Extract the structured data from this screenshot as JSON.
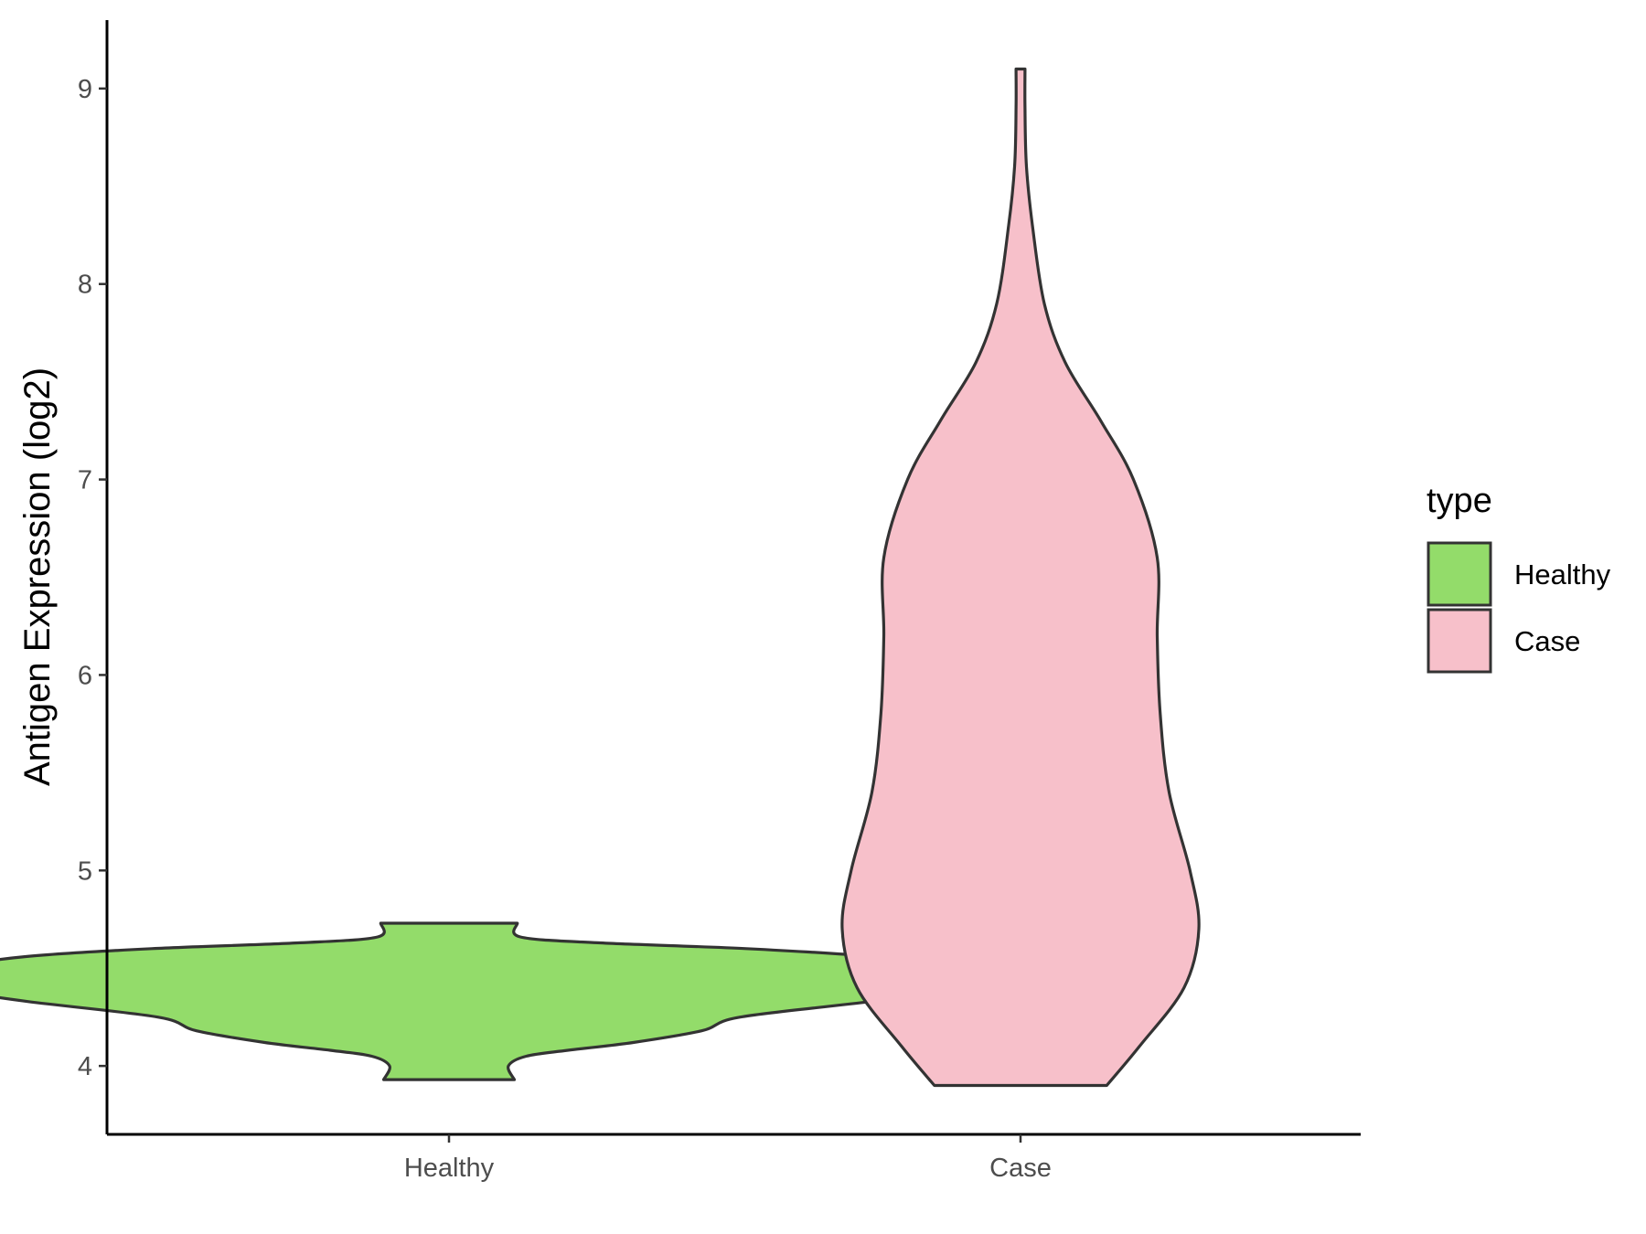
{
  "chart_data": {
    "type": "violin",
    "title": "",
    "xlabel": "",
    "ylabel": "Antigen Expression (log2)",
    "categories": [
      "Healthy",
      "Case"
    ],
    "ylim": [
      3.65,
      9.35
    ],
    "yticks": [
      4,
      5,
      6,
      7,
      8,
      9
    ],
    "grid": false,
    "legend": {
      "title": "type",
      "position": "right",
      "entries": [
        {
          "label": "Healthy",
          "color": "#93dc6a"
        },
        {
          "label": "Case",
          "color": "#f7c0ca"
        }
      ]
    },
    "series": [
      {
        "name": "Healthy",
        "color": "#93dc6a",
        "min": 3.93,
        "max": 4.73,
        "profile": [
          [
            3.93,
            0.22
          ],
          [
            4.0,
            0.2
          ],
          [
            4.05,
            0.26
          ],
          [
            4.08,
            0.4
          ],
          [
            4.12,
            0.62
          ],
          [
            4.18,
            0.85
          ],
          [
            4.25,
            0.98
          ],
          [
            4.33,
            1.42
          ],
          [
            4.4,
            1.72
          ],
          [
            4.45,
            1.8
          ],
          [
            4.5,
            1.7
          ],
          [
            4.56,
            1.42
          ],
          [
            4.6,
            1.0
          ],
          [
            4.63,
            0.5
          ],
          [
            4.66,
            0.24
          ],
          [
            4.73,
            0.23
          ]
        ]
      },
      {
        "name": "Case",
        "color": "#f7c0ca",
        "min": 3.9,
        "max": 9.1,
        "profile": [
          [
            3.9,
            0.29
          ],
          [
            4.1,
            0.4
          ],
          [
            4.4,
            0.55
          ],
          [
            4.7,
            0.6
          ],
          [
            5.0,
            0.57
          ],
          [
            5.4,
            0.5
          ],
          [
            5.8,
            0.47
          ],
          [
            6.2,
            0.46
          ],
          [
            6.6,
            0.46
          ],
          [
            7.0,
            0.38
          ],
          [
            7.3,
            0.27
          ],
          [
            7.6,
            0.15
          ],
          [
            7.9,
            0.08
          ],
          [
            8.3,
            0.04
          ],
          [
            8.6,
            0.02
          ],
          [
            8.9,
            0.015
          ],
          [
            9.1,
            0.015
          ]
        ]
      }
    ]
  }
}
